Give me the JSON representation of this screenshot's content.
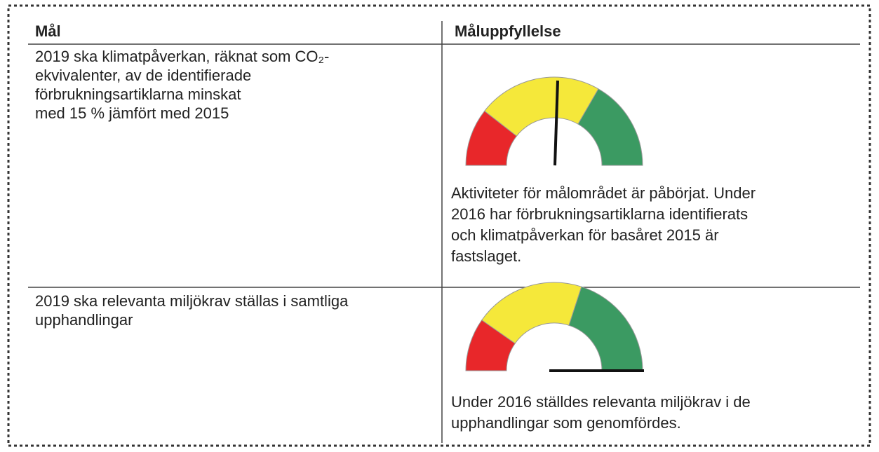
{
  "table": {
    "header": [
      "Mål",
      "Måluppfyllelse"
    ],
    "rows": [
      {
        "goal": [
          "2019 ska klimatpåverkan, räknat som CO₂-",
          "ekvivalenter, av de identifierade",
          "förbrukningsartiklarna minskat",
          "med 15 % jämfört med 2015"
        ],
        "status": [
          "Aktiviteter för målområdet är påbörjat. Under",
          "2016 har förbrukningsartiklarna identifierats",
          "och klimatpåverkan för basåret 2015 är",
          "fastslaget."
        ]
      },
      {
        "goal": [
          "2019 ska relevanta miljökrav ställas i samtliga",
          "upphandlingar"
        ],
        "status": [
          "Under 2016 ställdes relevanta miljökrav i de",
          "upphandlingar som genomfördes."
        ]
      }
    ]
  }
}
